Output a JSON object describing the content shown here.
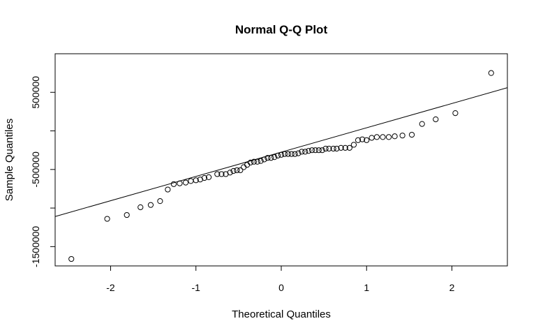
{
  "chart_data": {
    "type": "scatter",
    "title": "Normal Q-Q Plot",
    "xlabel": "Theoretical Quantiles",
    "ylabel": "Sample Quantiles",
    "xlim": [
      -2.65,
      2.65
    ],
    "ylim": [
      -1750000,
      1000000
    ],
    "x_ticks": [
      -2,
      -1,
      0,
      1,
      2
    ],
    "x_tick_labels": [
      "-2",
      "-1",
      "0",
      "1",
      "2"
    ],
    "y_ticks": [
      -1500000,
      -1000000,
      -500000,
      0,
      500000
    ],
    "y_tick_labels": [
      "-1500000",
      "",
      "-500000",
      "",
      "500000"
    ],
    "grid": false,
    "reference_line": {
      "x": [
        -2.65,
        2.65
      ],
      "y": [
        -1110000,
        560000
      ]
    },
    "series": [
      {
        "points": [
          {
            "x": -2.46,
            "y": -1660000
          },
          {
            "x": -2.04,
            "y": -1140000
          },
          {
            "x": -1.81,
            "y": -1090000
          },
          {
            "x": -1.65,
            "y": -990000
          },
          {
            "x": -1.53,
            "y": -960000
          },
          {
            "x": -1.42,
            "y": -910000
          },
          {
            "x": -1.33,
            "y": -760000
          },
          {
            "x": -1.26,
            "y": -690000
          },
          {
            "x": -1.19,
            "y": -680000
          },
          {
            "x": -1.12,
            "y": -670000
          },
          {
            "x": -1.06,
            "y": -650000
          },
          {
            "x": -1.0,
            "y": -640000
          },
          {
            "x": -0.95,
            "y": -630000
          },
          {
            "x": -0.9,
            "y": -610000
          },
          {
            "x": -0.85,
            "y": -600000
          },
          {
            "x": -0.75,
            "y": -560000
          },
          {
            "x": -0.7,
            "y": -560000
          },
          {
            "x": -0.65,
            "y": -560000
          },
          {
            "x": -0.6,
            "y": -540000
          },
          {
            "x": -0.56,
            "y": -520000
          },
          {
            "x": -0.52,
            "y": -510000
          },
          {
            "x": -0.48,
            "y": -510000
          },
          {
            "x": -0.44,
            "y": -470000
          },
          {
            "x": -0.4,
            "y": -440000
          },
          {
            "x": -0.36,
            "y": -410000
          },
          {
            "x": -0.32,
            "y": -400000
          },
          {
            "x": -0.28,
            "y": -400000
          },
          {
            "x": -0.24,
            "y": -390000
          },
          {
            "x": -0.2,
            "y": -370000
          },
          {
            "x": -0.16,
            "y": -350000
          },
          {
            "x": -0.12,
            "y": -350000
          },
          {
            "x": -0.08,
            "y": -340000
          },
          {
            "x": -0.04,
            "y": -320000
          },
          {
            "x": 0.0,
            "y": -310000
          },
          {
            "x": 0.04,
            "y": -300000
          },
          {
            "x": 0.08,
            "y": -300000
          },
          {
            "x": 0.12,
            "y": -300000
          },
          {
            "x": 0.16,
            "y": -300000
          },
          {
            "x": 0.2,
            "y": -290000
          },
          {
            "x": 0.24,
            "y": -270000
          },
          {
            "x": 0.28,
            "y": -270000
          },
          {
            "x": 0.32,
            "y": -260000
          },
          {
            "x": 0.36,
            "y": -250000
          },
          {
            "x": 0.4,
            "y": -250000
          },
          {
            "x": 0.44,
            "y": -250000
          },
          {
            "x": 0.48,
            "y": -250000
          },
          {
            "x": 0.52,
            "y": -230000
          },
          {
            "x": 0.56,
            "y": -230000
          },
          {
            "x": 0.61,
            "y": -230000
          },
          {
            "x": 0.65,
            "y": -230000
          },
          {
            "x": 0.7,
            "y": -220000
          },
          {
            "x": 0.75,
            "y": -220000
          },
          {
            "x": 0.8,
            "y": -220000
          },
          {
            "x": 0.85,
            "y": -180000
          },
          {
            "x": 0.9,
            "y": -120000
          },
          {
            "x": 0.95,
            "y": -110000
          },
          {
            "x": 1.0,
            "y": -120000
          },
          {
            "x": 1.06,
            "y": -90000
          },
          {
            "x": 1.12,
            "y": -80000
          },
          {
            "x": 1.19,
            "y": -80000
          },
          {
            "x": 1.26,
            "y": -80000
          },
          {
            "x": 1.33,
            "y": -70000
          },
          {
            "x": 1.42,
            "y": -60000
          },
          {
            "x": 1.53,
            "y": -50000
          },
          {
            "x": 1.65,
            "y": 90000
          },
          {
            "x": 1.81,
            "y": 150000
          },
          {
            "x": 2.04,
            "y": 230000
          },
          {
            "x": 2.46,
            "y": 750000
          }
        ]
      }
    ]
  }
}
